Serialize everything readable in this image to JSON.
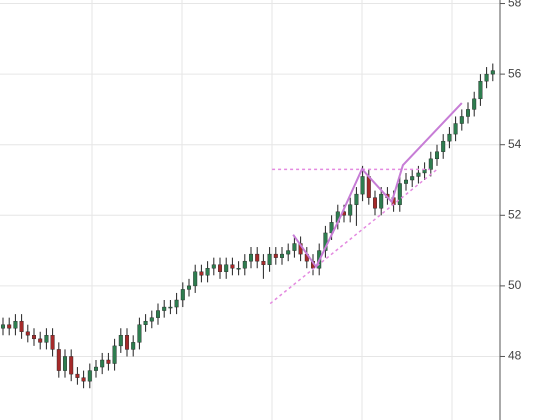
{
  "chart_data": {
    "type": "candlestick",
    "ylim": [
      46.2,
      58.1
    ],
    "yticks": [
      48,
      50,
      52,
      54,
      56,
      58
    ],
    "grid": true,
    "up_color": "#2e7d4f",
    "down_color": "#a52a2a",
    "open": [
      48.8,
      48.9,
      48.8,
      49.0,
      48.7,
      48.6,
      48.5,
      48.4,
      48.6,
      48.2,
      47.6,
      48.0,
      47.5,
      47.4,
      47.3,
      47.6,
      47.7,
      47.9,
      47.8,
      48.3,
      48.6,
      48.2,
      48.4,
      48.9,
      49.0,
      49.1,
      49.3,
      49.4,
      49.4,
      49.6,
      49.9,
      50.0,
      50.4,
      50.3,
      50.5,
      50.6,
      50.4,
      50.6,
      50.5,
      50.5,
      50.7,
      50.9,
      50.7,
      50.6,
      50.9,
      50.8,
      50.9,
      51.0,
      51.2,
      50.9,
      50.7,
      50.5,
      51.0,
      51.5,
      51.8,
      52.1,
      52.0,
      52.3,
      52.6,
      53.1,
      52.5,
      52.2,
      52.6,
      52.5,
      52.3,
      52.9,
      53.0,
      53.1,
      53.2,
      53.3,
      53.6,
      53.8,
      54.1,
      54.3,
      54.6,
      54.8,
      55.0,
      55.3,
      55.8,
      56.0
    ],
    "high": [
      49.1,
      49.1,
      49.2,
      49.2,
      48.9,
      48.8,
      48.7,
      48.8,
      48.8,
      48.4,
      48.2,
      48.2,
      47.7,
      47.6,
      47.8,
      47.9,
      48.1,
      48.1,
      48.5,
      48.8,
      48.8,
      48.6,
      49.1,
      49.2,
      49.3,
      49.5,
      49.6,
      49.6,
      49.8,
      50.1,
      50.2,
      50.6,
      50.6,
      50.7,
      50.8,
      50.8,
      50.8,
      50.8,
      50.7,
      50.9,
      51.1,
      51.1,
      50.9,
      51.1,
      51.1,
      51.1,
      51.2,
      51.4,
      51.4,
      51.1,
      50.9,
      51.2,
      51.7,
      52.0,
      52.3,
      52.3,
      52.5,
      52.8,
      53.4,
      53.3,
      52.7,
      52.8,
      52.8,
      52.7,
      53.1,
      53.2,
      53.3,
      53.4,
      53.5,
      53.8,
      54.0,
      54.3,
      54.5,
      54.8,
      55.0,
      55.2,
      55.5,
      56.0,
      56.2,
      56.3
    ],
    "low": [
      48.6,
      48.6,
      48.6,
      48.5,
      48.4,
      48.3,
      48.2,
      48.2,
      48.0,
      47.4,
      47.4,
      47.3,
      47.2,
      47.1,
      47.1,
      47.4,
      47.5,
      47.6,
      47.6,
      48.1,
      48.0,
      48.0,
      48.2,
      48.7,
      48.8,
      48.9,
      49.1,
      49.2,
      49.2,
      49.4,
      49.7,
      49.8,
      50.1,
      50.1,
      50.3,
      50.2,
      50.2,
      50.3,
      50.3,
      50.3,
      50.5,
      50.5,
      50.2,
      50.4,
      50.6,
      50.6,
      50.7,
      50.8,
      50.7,
      50.5,
      50.3,
      50.3,
      50.8,
      51.3,
      51.6,
      51.8,
      51.8,
      51.7,
      52.4,
      52.3,
      52.0,
      52.0,
      52.3,
      52.1,
      52.1,
      52.7,
      52.8,
      52.9,
      53.0,
      53.1,
      53.4,
      53.6,
      53.9,
      54.1,
      54.4,
      54.6,
      54.8,
      55.1,
      55.6,
      55.8
    ],
    "close": [
      48.9,
      48.8,
      49.0,
      48.7,
      48.6,
      48.5,
      48.4,
      48.6,
      48.2,
      47.6,
      48.0,
      47.5,
      47.4,
      47.3,
      47.6,
      47.7,
      47.9,
      47.8,
      48.3,
      48.6,
      48.2,
      48.4,
      48.9,
      49.0,
      49.1,
      49.3,
      49.4,
      49.4,
      49.6,
      49.9,
      50.0,
      50.4,
      50.3,
      50.5,
      50.6,
      50.4,
      50.6,
      50.5,
      50.5,
      50.7,
      50.9,
      50.7,
      50.6,
      50.9,
      50.8,
      50.9,
      51.0,
      51.2,
      50.9,
      50.7,
      50.5,
      51.0,
      51.5,
      51.8,
      52.1,
      52.0,
      52.3,
      52.6,
      53.1,
      52.5,
      52.2,
      52.6,
      52.5,
      52.3,
      52.9,
      53.0,
      53.1,
      53.2,
      53.3,
      53.6,
      53.8,
      54.1,
      54.3,
      54.6,
      54.8,
      55.0,
      55.3,
      55.8,
      56.0,
      56.1
    ],
    "trendlines": [
      {
        "x": [
          43.4,
          68.9
        ],
        "y": [
          53.3,
          53.3
        ],
        "color": "#e48ae0",
        "dashed": true
      },
      {
        "x": [
          43.1,
          70.0
        ],
        "y": [
          49.5,
          53.3
        ],
        "color": "#e48ae0",
        "dashed": true
      },
      {
        "x": [
          46.8,
          50.5,
          54.4,
          57.9,
          62.7,
          64.5,
          74.0
        ],
        "y": [
          51.45,
          50.54,
          51.95,
          53.31,
          52.38,
          53.42,
          55.18
        ],
        "color": "#c77dd6",
        "dashed": false
      }
    ]
  }
}
